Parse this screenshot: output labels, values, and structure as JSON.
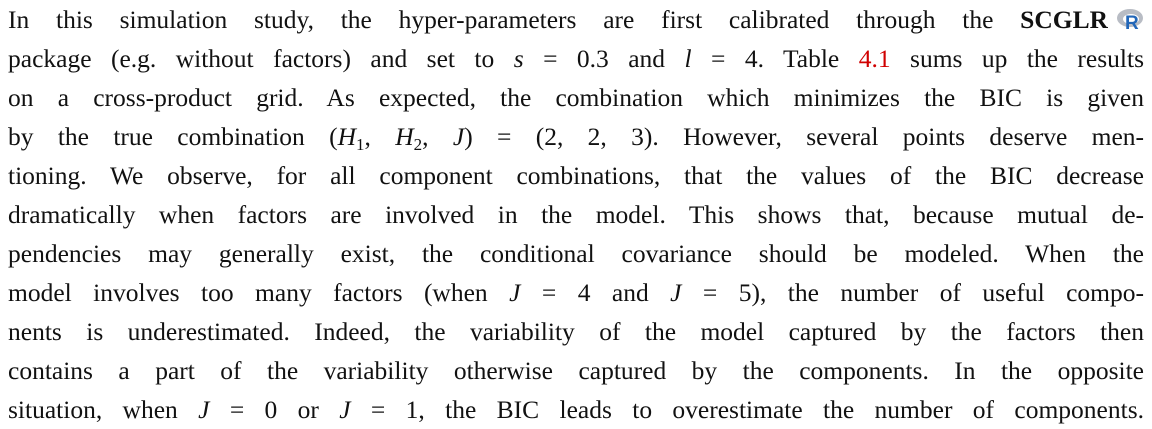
{
  "paragraph": {
    "lines": [
      {
        "segments": [
          {
            "text": "In this simulation study, the hyper-parameters are first calibrated through the ",
            "style": "plain"
          },
          {
            "text": "SCGLR",
            "style": "bold"
          }
        ]
      },
      {
        "segments": [
          {
            "text": "package (e.g. without factors) and set to ",
            "style": "plain"
          },
          {
            "text": "s",
            "style": "math"
          },
          {
            "text": " = 0.3 and ",
            "style": "plain"
          },
          {
            "text": "l",
            "style": "math"
          },
          {
            "text": " = 4. Table ",
            "style": "plain"
          },
          {
            "text": "4.1",
            "style": "link"
          },
          {
            "text": " sums up the results",
            "style": "plain"
          }
        ]
      },
      {
        "segments": [
          {
            "text": "on a cross-product grid. As expected, the combination which minimizes the BIC is given",
            "style": "plain"
          }
        ]
      },
      {
        "segments": [
          {
            "text": "by the true combination (",
            "style": "plain"
          },
          {
            "text": "H",
            "style": "math"
          },
          {
            "text": "1",
            "style": "sub"
          },
          {
            "text": ", ",
            "style": "plain"
          },
          {
            "text": "H",
            "style": "math"
          },
          {
            "text": "2",
            "style": "sub"
          },
          {
            "text": ", ",
            "style": "plain"
          },
          {
            "text": "J",
            "style": "math"
          },
          {
            "text": ") = (2, 2, 3). However, several points deserve men-",
            "style": "plain"
          }
        ]
      },
      {
        "segments": [
          {
            "text": "tioning. We observe, for all component combinations, that the values of the BIC decrease",
            "style": "plain"
          }
        ]
      },
      {
        "segments": [
          {
            "text": "dramatically when factors are involved in the model. This shows that, because mutual de-",
            "style": "plain"
          }
        ]
      },
      {
        "segments": [
          {
            "text": "pendencies may generally exist, the conditional covariance should be modeled. When the",
            "style": "plain"
          }
        ]
      },
      {
        "segments": [
          {
            "text": "model involves too many factors (when ",
            "style": "plain"
          },
          {
            "text": "J",
            "style": "math"
          },
          {
            "text": " = 4 and ",
            "style": "plain"
          },
          {
            "text": "J",
            "style": "math"
          },
          {
            "text": " = 5), the number of useful compo-",
            "style": "plain"
          }
        ]
      },
      {
        "segments": [
          {
            "text": "nents is underestimated. Indeed, the variability of the model captured by the factors then",
            "style": "plain"
          }
        ]
      },
      {
        "segments": [
          {
            "text": "contains a part of the variability otherwise captured by the components. In the opposite",
            "style": "plain"
          }
        ]
      },
      {
        "segments": [
          {
            "text": "situation, when ",
            "style": "plain"
          },
          {
            "text": "J",
            "style": "math"
          },
          {
            "text": " = 0 or ",
            "style": "plain"
          },
          {
            "text": "J",
            "style": "math"
          },
          {
            "text": " = 1, the BIC leads to overestimate the number of components.",
            "style": "plain"
          }
        ]
      }
    ]
  }
}
